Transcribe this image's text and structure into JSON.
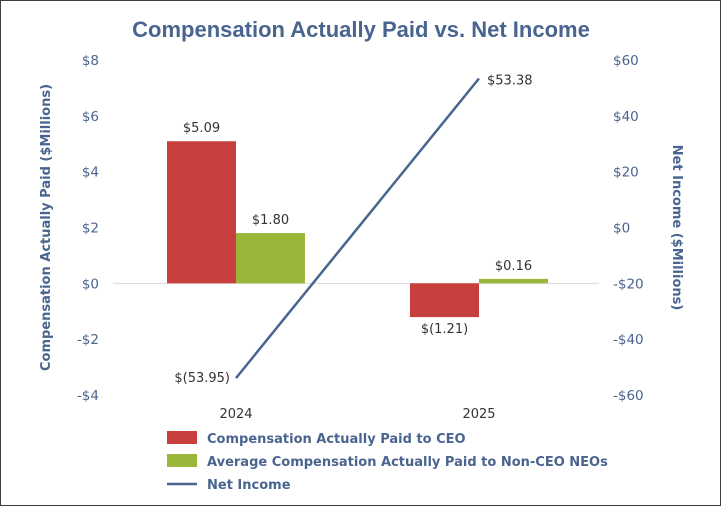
{
  "chart_data": {
    "type": "bar",
    "title": "Compensation Actually Paid vs. Net Income",
    "categories": [
      "2024",
      "2025"
    ],
    "series": [
      {
        "name": "Compensation Actually Paid to CEO",
        "type": "bar",
        "axis": "left",
        "color": "#c8403d",
        "values": [
          5.09,
          -1.21
        ],
        "labels": [
          "$5.09",
          "$(1.21)"
        ]
      },
      {
        "name": "Average Compensation Actually Paid to Non-CEO NEOs",
        "type": "bar",
        "axis": "left",
        "color": "#9ab73a",
        "values": [
          1.8,
          0.16
        ],
        "labels": [
          "$1.80",
          "$0.16"
        ]
      },
      {
        "name": "Net Income",
        "type": "line",
        "axis": "right",
        "color": "#4a6490",
        "values": [
          -53.95,
          53.38
        ],
        "labels": [
          "$(53.95)",
          "$53.38"
        ]
      }
    ],
    "ylabel": "Compensation Actually Paid ($Millions)",
    "y2label": "Net Income ($Millions)",
    "ylim": [
      -4,
      8
    ],
    "y2lim": [
      -60,
      60
    ],
    "yticks": [
      {
        "value": 8,
        "label": "$8"
      },
      {
        "value": 6,
        "label": "$6"
      },
      {
        "value": 4,
        "label": "$4"
      },
      {
        "value": 2,
        "label": "$2"
      },
      {
        "value": 0,
        "label": "$0"
      },
      {
        "value": -2,
        "label": "-$2"
      },
      {
        "value": -4,
        "label": "-$4"
      }
    ],
    "y2ticks": [
      {
        "value": 60,
        "label": "$60"
      },
      {
        "value": 40,
        "label": "$40"
      },
      {
        "value": 20,
        "label": "$20"
      },
      {
        "value": 0,
        "label": "$0"
      },
      {
        "value": -20,
        "label": "-$20"
      },
      {
        "value": -40,
        "label": "-$40"
      },
      {
        "value": -60,
        "label": "-$60"
      }
    ],
    "grid": false,
    "legend": "bottom"
  }
}
